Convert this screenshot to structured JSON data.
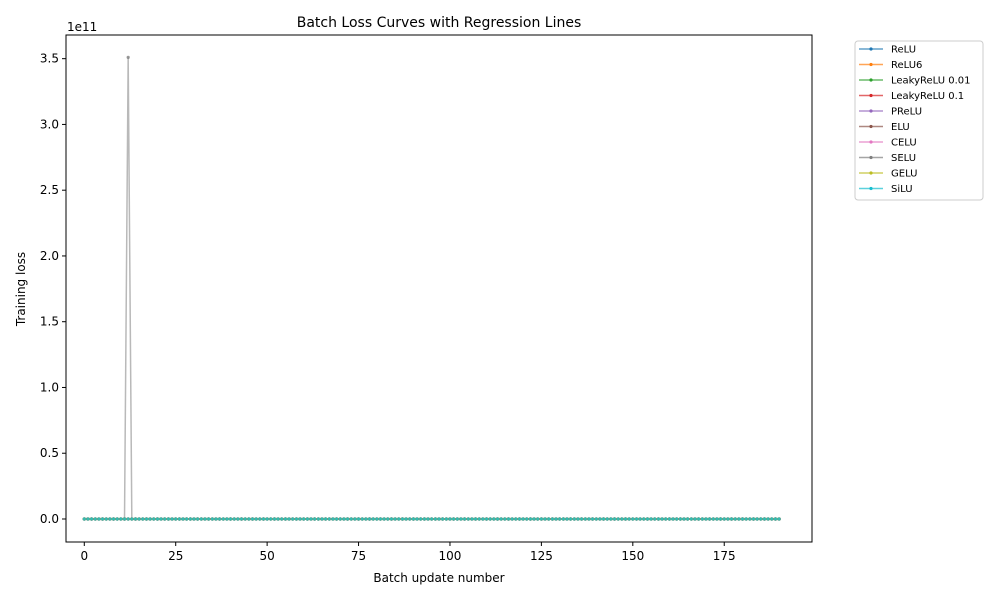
{
  "chart_data": {
    "type": "line",
    "title": "Batch Loss Curves with Regression Lines",
    "xlabel": "Batch update number",
    "ylabel": "Training loss",
    "y_scale_label": "1e11",
    "xlim": [
      -5,
      199
    ],
    "ylim": [
      -17500000000,
      368000000000
    ],
    "x_ticks": [
      0,
      25,
      50,
      75,
      100,
      125,
      150,
      175
    ],
    "x_tick_labels": [
      "0",
      "25",
      "50",
      "75",
      "100",
      "125",
      "150",
      "175"
    ],
    "y_ticks": [
      0,
      50000000000,
      100000000000,
      150000000000,
      200000000000,
      250000000000,
      300000000000,
      350000000000
    ],
    "y_tick_labels": [
      "0.0",
      "0.5",
      "1.0",
      "1.5",
      "2.0",
      "2.5",
      "3.0",
      "3.5"
    ],
    "legend_position": "outside-top-right",
    "grid": false,
    "x_count": 191,
    "series": [
      {
        "name": "ReLU",
        "color": "#1f77b4",
        "values_note": "near 0 for all batches"
      },
      {
        "name": "ReLU6",
        "color": "#ff7f0e",
        "values_note": "near 0 for all batches"
      },
      {
        "name": "LeakyReLU 0.01",
        "color": "#2ca02c",
        "values_note": "near 0 for all batches"
      },
      {
        "name": "LeakyReLU 0.1",
        "color": "#d62728",
        "values_note": "near 0 for all batches"
      },
      {
        "name": "PReLU",
        "color": "#9467bd",
        "values_note": "near 0 for all batches"
      },
      {
        "name": "ELU",
        "color": "#8c564b",
        "values_note": "near 0 for all batches"
      },
      {
        "name": "CELU",
        "color": "#e377c2",
        "values_note": "near 0 for all batches"
      },
      {
        "name": "SELU",
        "color": "#7f7f7f",
        "spike": {
          "x": 12,
          "y": 351000000000
        },
        "values_note": "near 0 except spike at batch 12"
      },
      {
        "name": "GELU",
        "color": "#bcbd22",
        "values_note": "near 0 for all batches"
      },
      {
        "name": "SiLU",
        "color": "#17becf",
        "values_note": "near 0 for all batches"
      }
    ]
  }
}
